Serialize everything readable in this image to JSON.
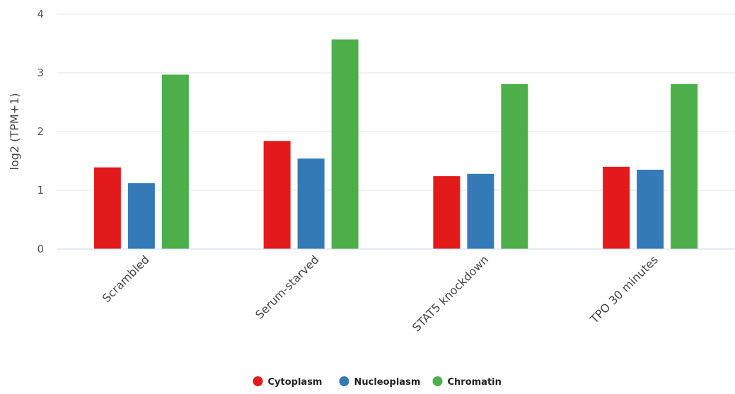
{
  "chart_data": {
    "type": "bar",
    "ylabel": "log2 (TPM+1)",
    "xlabel": "",
    "ylim": [
      0,
      4
    ],
    "yticks": [
      0,
      1,
      2,
      3,
      4
    ],
    "grid": true,
    "legend_position": "bottom-center",
    "categories": [
      "Scrambled",
      "Serum-starved",
      "STAT5 knockdown",
      "TPO 30 minutes"
    ],
    "series": [
      {
        "name": "Cytoplasm",
        "color": "#e31a1c",
        "values": [
          1.39,
          1.84,
          1.24,
          1.4
        ]
      },
      {
        "name": "Nucleoplasm",
        "color": "#337ab7",
        "values": [
          1.12,
          1.54,
          1.28,
          1.35
        ]
      },
      {
        "name": "Chromatin",
        "color": "#4daf4a",
        "values": [
          2.97,
          3.57,
          2.81,
          2.81
        ]
      }
    ]
  }
}
